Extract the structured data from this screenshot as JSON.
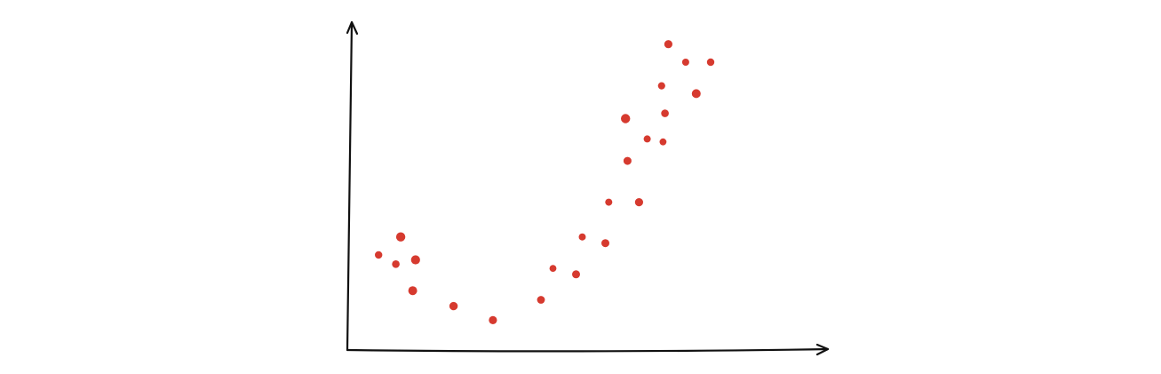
{
  "chart_data": {
    "type": "scatter",
    "title": "",
    "xlabel": "",
    "ylabel": "",
    "grid": false,
    "legend": "none",
    "point_color": "#d63a2f",
    "axis_color": "#111111",
    "xlim": [
      0,
      100
    ],
    "ylim": [
      0,
      100
    ],
    "series": [
      {
        "points": [
          {
            "x": 6.5,
            "y": 29.0
          },
          {
            "x": 10.1,
            "y": 26.2
          },
          {
            "x": 11.1,
            "y": 34.5
          },
          {
            "x": 14.2,
            "y": 27.5
          },
          {
            "x": 13.6,
            "y": 18.1
          },
          {
            "x": 22.1,
            "y": 13.4
          },
          {
            "x": 30.3,
            "y": 9.1
          },
          {
            "x": 40.3,
            "y": 15.3
          },
          {
            "x": 42.8,
            "y": 24.9
          },
          {
            "x": 47.6,
            "y": 23.1
          },
          {
            "x": 48.9,
            "y": 34.5
          },
          {
            "x": 53.7,
            "y": 32.6
          },
          {
            "x": 54.4,
            "y": 45.1
          },
          {
            "x": 57.9,
            "y": 70.6
          },
          {
            "x": 58.3,
            "y": 57.7
          },
          {
            "x": 60.7,
            "y": 45.1
          },
          {
            "x": 62.4,
            "y": 64.4
          },
          {
            "x": 65.7,
            "y": 63.5
          },
          {
            "x": 66.1,
            "y": 72.2
          },
          {
            "x": 65.4,
            "y": 80.6
          },
          {
            "x": 66.8,
            "y": 93.3
          },
          {
            "x": 70.4,
            "y": 87.8
          },
          {
            "x": 72.6,
            "y": 78.2
          },
          {
            "x": 75.6,
            "y": 87.8
          }
        ]
      }
    ]
  }
}
